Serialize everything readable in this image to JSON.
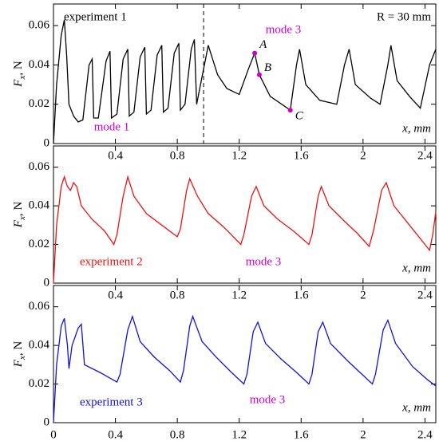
{
  "chart_data": [
    {
      "type": "line",
      "color": "#000000",
      "x": [
        0,
        0.02,
        0.05,
        0.07,
        0.085,
        0.1,
        0.13,
        0.16,
        0.19,
        0.23,
        0.25,
        0.26,
        0.29,
        0.34,
        0.365,
        0.375,
        0.41,
        0.45,
        0.48,
        0.49,
        0.52,
        0.56,
        0.59,
        0.6,
        0.63,
        0.67,
        0.7,
        0.71,
        0.74,
        0.78,
        0.81,
        0.82,
        0.85,
        0.89,
        0.91,
        0.925,
        0.95,
        0.99,
        1.0,
        1.06,
        1.12,
        1.2,
        1.26,
        1.3,
        1.33,
        1.4,
        1.53,
        1.57,
        1.59,
        1.63,
        1.72,
        1.83,
        1.88,
        1.91,
        1.95,
        2.05,
        2.11,
        2.16,
        2.18,
        2.22,
        2.3,
        2.37,
        2.43,
        2.47
      ],
      "values": [
        0,
        0.03,
        0.055,
        0.063,
        0.045,
        0.02,
        0.014,
        0.011,
        0.012,
        0.04,
        0.043,
        0.013,
        0.013,
        0.042,
        0.047,
        0.013,
        0.015,
        0.043,
        0.048,
        0.014,
        0.016,
        0.044,
        0.049,
        0.015,
        0.017,
        0.045,
        0.05,
        0.016,
        0.018,
        0.046,
        0.051,
        0.017,
        0.02,
        0.048,
        0.053,
        0.02,
        0.03,
        0.046,
        0.05,
        0.035,
        0.028,
        0.025,
        0.038,
        0.046,
        0.035,
        0.024,
        0.017,
        0.04,
        0.048,
        0.03,
        0.022,
        0.02,
        0.04,
        0.048,
        0.03,
        0.023,
        0.02,
        0.04,
        0.05,
        0.032,
        0.024,
        0.018,
        0.04,
        0.048
      ],
      "xlim": [
        0,
        2.47
      ],
      "ylim": [
        0,
        0.071
      ],
      "xticks": [
        0.4,
        0.8,
        1.2,
        1.6,
        2,
        2.4
      ],
      "yticks": [
        0,
        0.02,
        0.04,
        0.06
      ],
      "x_label": "x, mm",
      "y_label": {
        "main": "F",
        "sub": "x",
        "unit": ", N"
      },
      "vline": 0.97,
      "points": [
        {
          "label": "A",
          "x": 1.3,
          "y": 0.046
        },
        {
          "label": "B",
          "x": 1.33,
          "y": 0.035
        },
        {
          "label": "C",
          "x": 1.53,
          "y": 0.017
        }
      ],
      "point_color": "#cc00cc",
      "annotations": [
        {
          "text": "experiment 1",
          "color": "#000000"
        },
        {
          "text": "R = 30 mm",
          "color": "#000000"
        },
        {
          "text": "mode 3",
          "color": "#cc00cc"
        },
        {
          "text": "mode 1",
          "color": "#cc00cc"
        }
      ]
    },
    {
      "type": "line",
      "color": "#ee1111",
      "x": [
        0,
        0.02,
        0.05,
        0.07,
        0.09,
        0.11,
        0.13,
        0.15,
        0.18,
        0.25,
        0.33,
        0.39,
        0.41,
        0.45,
        0.48,
        0.52,
        0.6,
        0.7,
        0.8,
        0.82,
        0.86,
        0.88,
        0.93,
        1.0,
        1.1,
        1.21,
        1.23,
        1.28,
        1.31,
        1.36,
        1.45,
        1.55,
        1.65,
        1.67,
        1.71,
        1.73,
        1.78,
        1.88,
        1.96,
        2.04,
        2.07,
        2.12,
        2.15,
        2.2,
        2.3,
        2.43,
        2.45,
        2.47
      ],
      "values": [
        0,
        0.03,
        0.05,
        0.055,
        0.05,
        0.048,
        0.052,
        0.05,
        0.04,
        0.033,
        0.027,
        0.02,
        0.025,
        0.045,
        0.055,
        0.045,
        0.036,
        0.03,
        0.024,
        0.028,
        0.048,
        0.054,
        0.045,
        0.036,
        0.029,
        0.02,
        0.025,
        0.045,
        0.05,
        0.04,
        0.033,
        0.027,
        0.02,
        0.025,
        0.045,
        0.05,
        0.04,
        0.032,
        0.026,
        0.019,
        0.028,
        0.048,
        0.052,
        0.04,
        0.03,
        0.017,
        0.025,
        0.037
      ],
      "xlim": [
        0,
        2.47
      ],
      "ylim": [
        0,
        0.071
      ],
      "xticks": [
        0.4,
        0.8,
        1.2,
        1.6,
        2,
        2.4
      ],
      "yticks": [
        0,
        0.02,
        0.04,
        0.06
      ],
      "x_label": "x, mm",
      "y_label": {
        "main": "F",
        "sub": "x",
        "unit": ", N"
      },
      "annotations": [
        {
          "text": "experiment 2",
          "color": "#ee1111"
        },
        {
          "text": "mode 3",
          "color": "#cc00cc"
        }
      ]
    },
    {
      "type": "line",
      "color": "#1111dd",
      "x": [
        0,
        0.02,
        0.05,
        0.07,
        0.09,
        0.1,
        0.12,
        0.16,
        0.18,
        0.2,
        0.3,
        0.41,
        0.43,
        0.48,
        0.51,
        0.56,
        0.65,
        0.75,
        0.82,
        0.84,
        0.88,
        0.9,
        0.96,
        1.05,
        1.15,
        1.23,
        1.25,
        1.29,
        1.32,
        1.37,
        1.47,
        1.57,
        1.65,
        1.67,
        1.71,
        1.74,
        1.79,
        1.9,
        1.98,
        2.06,
        2.08,
        2.13,
        2.16,
        2.21,
        2.32,
        2.42,
        2.47
      ],
      "values": [
        0,
        0.03,
        0.05,
        0.054,
        0.04,
        0.028,
        0.04,
        0.049,
        0.051,
        0.03,
        0.026,
        0.021,
        0.025,
        0.048,
        0.055,
        0.042,
        0.034,
        0.027,
        0.021,
        0.027,
        0.05,
        0.055,
        0.042,
        0.034,
        0.026,
        0.02,
        0.025,
        0.047,
        0.052,
        0.041,
        0.033,
        0.026,
        0.02,
        0.025,
        0.047,
        0.052,
        0.041,
        0.032,
        0.026,
        0.02,
        0.025,
        0.048,
        0.053,
        0.041,
        0.029,
        0.022,
        0.019
      ],
      "xlim": [
        0,
        2.47
      ],
      "ylim": [
        0,
        0.071
      ],
      "xticks": [
        0,
        0.4,
        0.8,
        1.2,
        1.6,
        2,
        2.4
      ],
      "yticks": [
        0,
        0.02,
        0.04,
        0.06
      ],
      "x_label": "x, mm",
      "y_label": {
        "main": "F",
        "sub": "x",
        "unit": ", N"
      },
      "annotations": [
        {
          "text": "experiment 3",
          "color": "#1111dd"
        },
        {
          "text": "mode 3",
          "color": "#cc00cc"
        }
      ]
    }
  ]
}
